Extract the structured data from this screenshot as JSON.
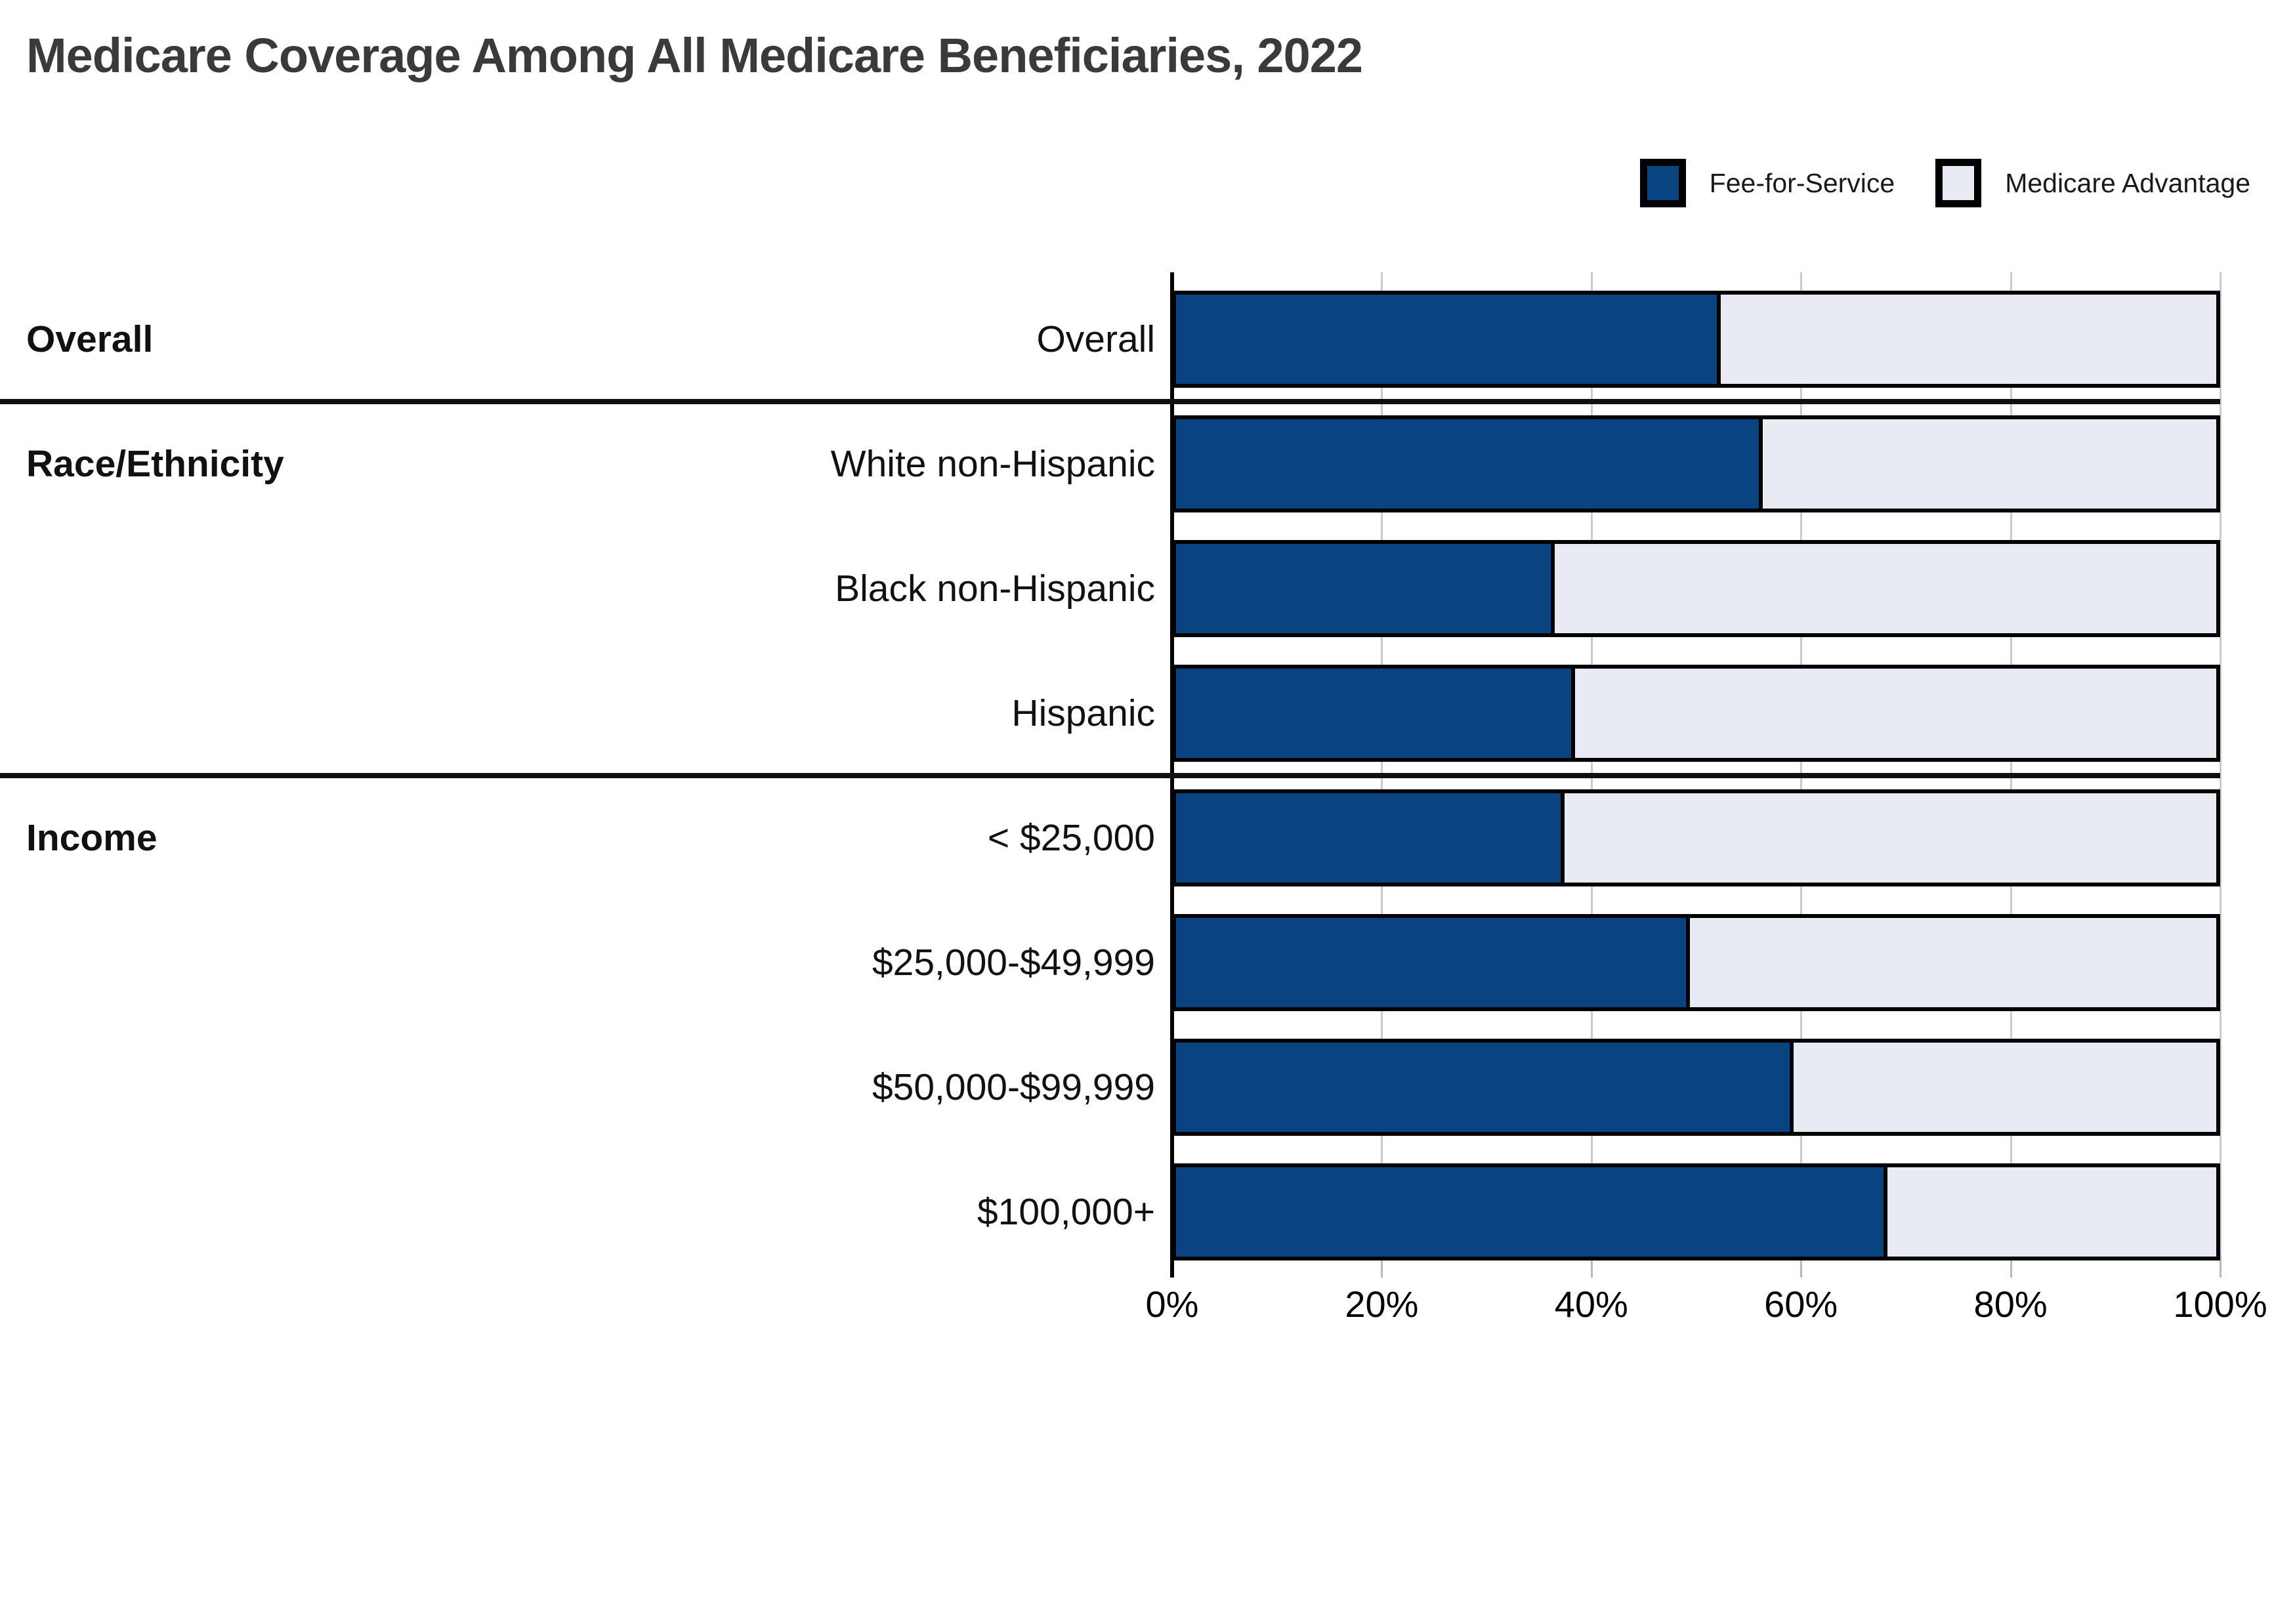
{
  "title": "Medicare Coverage Among All Medicare Beneficiaries, 2022",
  "legend": [
    {
      "label": "Fee-for-Service",
      "color": "#0a4480"
    },
    {
      "label": "Medicare Advantage",
      "color": "#e8ebf3"
    }
  ],
  "chart_data": {
    "type": "bar",
    "orientation": "horizontal",
    "stacked": true,
    "title": "Medicare Coverage Among All Medicare Beneficiaries, 2022",
    "xlabel": "",
    "ylabel": "",
    "xlim": [
      0,
      100
    ],
    "x_ticks": [
      "0%",
      "20%",
      "40%",
      "60%",
      "80%",
      "100%"
    ],
    "grid": "vertical",
    "legend_position": "top-right",
    "colors": {
      "fee_for_service": "#0a4480",
      "medicare_advantage": "#e8ebf3",
      "bar_border": "#000000",
      "gridline": "#cbcbcb",
      "separator": "#101010",
      "title_text": "#3a3a3a"
    },
    "categories": [
      "Overall",
      "White non-Hispanic",
      "Black non-Hispanic",
      "Hispanic",
      "< $25,000",
      "$25,000-$49,999",
      "$50,000-$99,999",
      "$100,000+"
    ],
    "series": [
      {
        "name": "Fee-for-Service",
        "values": [
          52,
          56,
          36,
          38,
          37,
          49,
          59,
          68
        ]
      },
      {
        "name": "Medicare Advantage",
        "values": [
          48,
          44,
          64,
          62,
          63,
          51,
          41,
          32
        ]
      }
    ],
    "groups": [
      {
        "label": "Overall",
        "rows": [
          {
            "label": "Overall",
            "ffs": 52,
            "ma": 48
          }
        ]
      },
      {
        "label": "Race/Ethnicity",
        "rows": [
          {
            "label": "White non-Hispanic",
            "ffs": 56,
            "ma": 44
          },
          {
            "label": "Black non-Hispanic",
            "ffs": 36,
            "ma": 64
          },
          {
            "label": "Hispanic",
            "ffs": 38,
            "ma": 62
          }
        ]
      },
      {
        "label": "Income",
        "rows": [
          {
            "label": "< $25,000",
            "ffs": 37,
            "ma": 63
          },
          {
            "label": "$25,000-$49,999",
            "ffs": 49,
            "ma": 51
          },
          {
            "label": "$50,000-$99,999",
            "ffs": 59,
            "ma": 41
          },
          {
            "label": "$100,000+",
            "ffs": 68,
            "ma": 32
          }
        ]
      }
    ]
  }
}
